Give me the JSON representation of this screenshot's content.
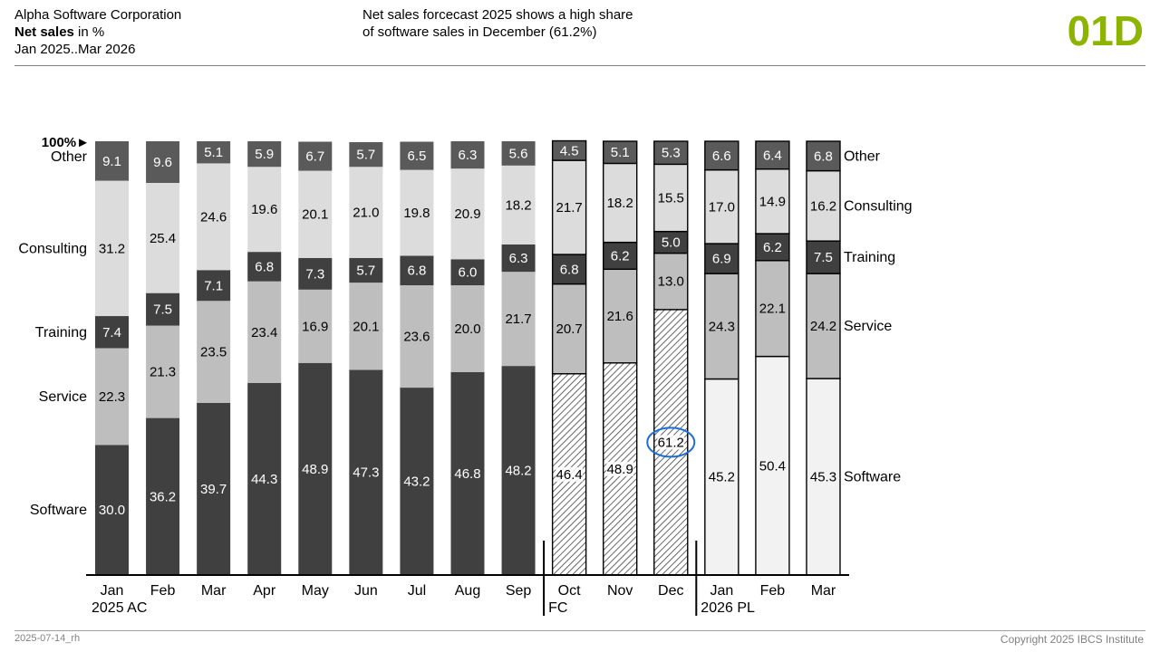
{
  "header": {
    "company": "Alpha Software Corporation",
    "measure_bold": "Net sales",
    "measure_unit": " in %",
    "period": "Jan 2025..Mar 2026",
    "message_line1": "Net sales forcecast 2025 shows a high share",
    "message_line2": "of software sales in December (61.2%)",
    "page_code": "01D"
  },
  "footer": {
    "left": "2025-07-14_rh",
    "right": "Copyright 2025 IBCS Institute"
  },
  "colors": {
    "accent": "#8cb400",
    "software_ac": "#404040",
    "service": "#bebebe",
    "training": "#404040",
    "consulting": "#dcdcdc",
    "other": "#5a5a5a",
    "pl_software": "#f2f2f2",
    "highlight": "#1a6ed8"
  },
  "chart_data": {
    "type": "bar",
    "stacked": true,
    "percent_stacked": true,
    "ylim": [
      0,
      100
    ],
    "hundred_marker": "100%►",
    "categories": [
      "Jan",
      "Feb",
      "Mar",
      "Apr",
      "May",
      "Jun",
      "Jul",
      "Aug",
      "Sep",
      "Oct",
      "Nov",
      "Dec",
      "Jan",
      "Feb",
      "Mar"
    ],
    "scenarios": [
      "AC",
      "AC",
      "AC",
      "AC",
      "AC",
      "AC",
      "AC",
      "AC",
      "AC",
      "FC",
      "FC",
      "FC",
      "PL",
      "PL",
      "PL"
    ],
    "group_labels": [
      {
        "text": "2025 AC",
        "start_index": 0
      },
      {
        "text": "FC",
        "start_index": 9
      },
      {
        "text": "2026 PL",
        "start_index": 12
      }
    ],
    "series": [
      {
        "name": "Software",
        "values": [
          30.0,
          36.2,
          39.7,
          44.3,
          48.9,
          47.3,
          43.2,
          46.8,
          48.2,
          46.4,
          48.9,
          61.2,
          45.2,
          50.4,
          45.3
        ]
      },
      {
        "name": "Service",
        "values": [
          22.3,
          21.3,
          23.5,
          23.4,
          16.9,
          20.1,
          23.6,
          20.0,
          21.7,
          20.7,
          21.6,
          13.0,
          24.3,
          22.1,
          24.2
        ]
      },
      {
        "name": "Training",
        "values": [
          7.4,
          7.5,
          7.1,
          6.8,
          7.3,
          5.7,
          6.8,
          6.0,
          6.3,
          6.8,
          6.2,
          5.0,
          6.9,
          6.2,
          7.5
        ]
      },
      {
        "name": "Consulting",
        "values": [
          31.2,
          25.4,
          24.6,
          19.6,
          20.1,
          21.0,
          19.8,
          20.9,
          18.2,
          21.7,
          18.2,
          15.5,
          17.0,
          14.9,
          16.2
        ]
      },
      {
        "name": "Other",
        "values": [
          9.1,
          9.6,
          5.1,
          5.9,
          6.7,
          5.7,
          6.5,
          6.3,
          5.6,
          4.5,
          5.1,
          5.3,
          6.6,
          6.4,
          6.8
        ]
      }
    ],
    "value_labels": [
      [
        "30.0",
        "36.2",
        "39.7",
        "44.3",
        "48.9",
        "47.3",
        "43.2",
        "46.8",
        "48.2",
        "46.4",
        "48.9",
        "61.2",
        "45.2",
        "50.4",
        "45.3"
      ],
      [
        "22.3",
        "21.3",
        "23.5",
        "23.4",
        "16.9",
        "20.1",
        "23.6",
        "20.0",
        "21.7",
        "20.7",
        "21.6",
        "13.0",
        "24.3",
        "22.1",
        "24.2"
      ],
      [
        "7.4",
        "7.5",
        "7.1",
        "6.8",
        "7.3",
        "5.7",
        "6.8",
        "6.0",
        "6.3",
        "6.8",
        "6.2",
        "5.0",
        "6.9",
        "6.2",
        "7.5"
      ],
      [
        "31.2",
        "25.4",
        "24.6",
        "19.6",
        "20.1",
        "21.0",
        "19.8",
        "20.9",
        "18.2",
        "21.7",
        "18.2",
        "15.5",
        "17.0",
        "14.9",
        "16.2"
      ],
      [
        "9.1",
        "9.6",
        "5.1",
        "5.9",
        "6.7",
        "5.7",
        "6.5",
        "6.3",
        "5.6",
        "4.5",
        "5.1",
        "5.3",
        "6.6",
        "6.4",
        "6.8"
      ]
    ],
    "legend_placement": "left-and-right",
    "highlight": {
      "category_index": 11,
      "series": "Software",
      "value": 61.2
    },
    "grid": false
  }
}
